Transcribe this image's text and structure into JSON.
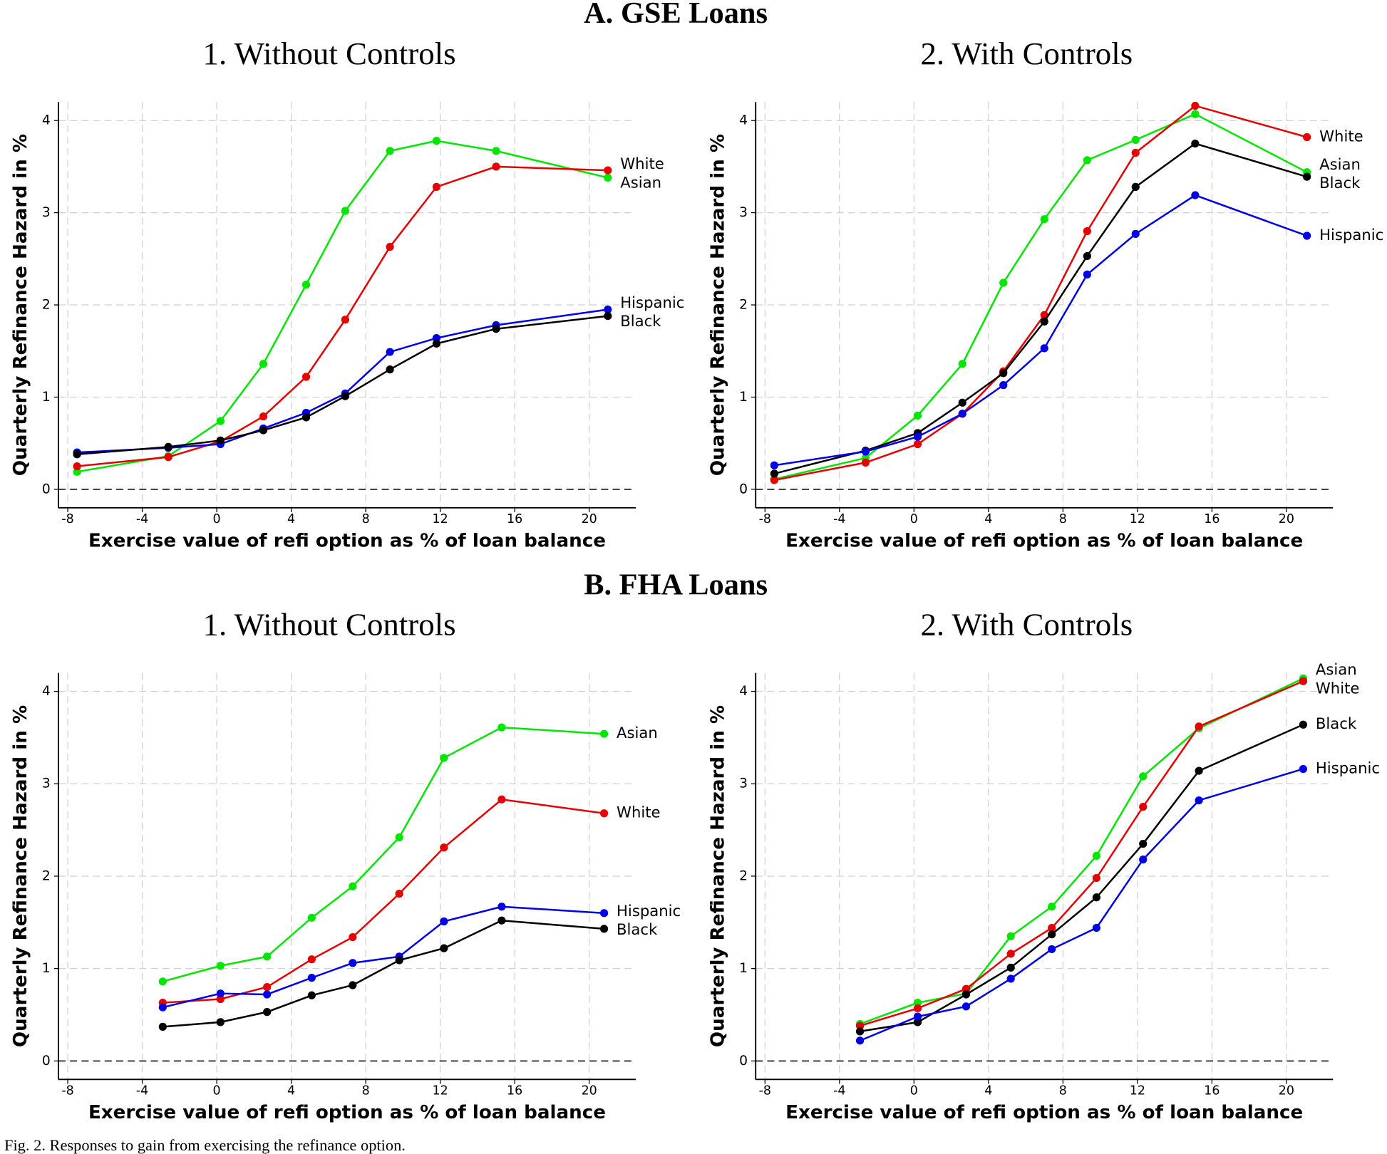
{
  "sections": [
    {
      "title": "A. GSE Loans"
    },
    {
      "title": "B. FHA Loans"
    }
  ],
  "caption": "Fig. 2. Responses to gain from exercising the refinance option.",
  "chart_data": [
    {
      "type": "line",
      "title": "1. Without Controls",
      "x_label": "Exercise value of refi option as % of loan balance",
      "y_label": "Quarterly Refinance Hazard in %",
      "x": [
        -7.5,
        -2.6,
        0.2,
        2.5,
        4.8,
        6.9,
        9.3,
        11.8,
        15,
        21
      ],
      "series": [
        {
          "name": "Asian",
          "color": "#00e600",
          "values": [
            0.19,
            0.36,
            0.74,
            1.36,
            2.22,
            3.02,
            3.67,
            3.78,
            3.67,
            3.38
          ]
        },
        {
          "name": "White",
          "color": "#e60000",
          "values": [
            0.25,
            0.35,
            0.52,
            0.79,
            1.22,
            1.84,
            2.63,
            3.28,
            3.5,
            3.46
          ]
        },
        {
          "name": "Hispanic",
          "color": "#0000e6",
          "values": [
            0.4,
            0.45,
            0.49,
            0.66,
            0.83,
            1.04,
            1.49,
            1.64,
            1.78,
            1.95
          ]
        },
        {
          "name": "Black",
          "color": "#000000",
          "values": [
            0.38,
            0.46,
            0.53,
            0.64,
            0.78,
            1.01,
            1.3,
            1.58,
            1.74,
            1.88
          ]
        }
      ],
      "xlim": [
        -8.5,
        22.5
      ],
      "xticks": [
        -8,
        -4,
        0,
        4,
        8,
        12,
        16,
        20
      ],
      "ylim": [
        -0.2,
        4.2
      ],
      "yticks": [
        0,
        1,
        2,
        3,
        4
      ],
      "grid": true,
      "hline": 0
    },
    {
      "type": "line",
      "title": "2. With Controls",
      "x_label": "Exercise value of refi option as % of loan balance",
      "y_label": "Quarterly Refinance Hazard in %",
      "x": [
        -7.5,
        -2.6,
        0.2,
        2.6,
        4.8,
        7,
        9.3,
        11.9,
        15.1,
        21.1
      ],
      "series": [
        {
          "name": "Asian",
          "color": "#00e600",
          "values": [
            0.11,
            0.34,
            0.8,
            1.36,
            2.24,
            2.93,
            3.57,
            3.79,
            4.07,
            3.44
          ]
        },
        {
          "name": "White",
          "color": "#e60000",
          "values": [
            0.1,
            0.29,
            0.49,
            0.82,
            1.28,
            1.89,
            2.8,
            3.65,
            4.16,
            3.82
          ]
        },
        {
          "name": "Black",
          "color": "#000000",
          "values": [
            0.17,
            0.42,
            0.61,
            0.94,
            1.26,
            1.82,
            2.53,
            3.28,
            3.75,
            3.39
          ]
        },
        {
          "name": "Hispanic",
          "color": "#0000e6",
          "values": [
            0.26,
            0.41,
            0.57,
            0.82,
            1.13,
            1.53,
            2.33,
            2.77,
            3.19,
            2.75
          ]
        }
      ],
      "xlim": [
        -8.5,
        22.5
      ],
      "xticks": [
        -8,
        -4,
        0,
        4,
        8,
        12,
        16,
        20
      ],
      "ylim": [
        -0.2,
        4.2
      ],
      "yticks": [
        0,
        1,
        2,
        3,
        4
      ],
      "grid": true,
      "hline": 0
    },
    {
      "type": "line",
      "title": "1. Without Controls",
      "x_label": "Exercise value of refi option as % of loan balance",
      "y_label": "Quarterly Refinance Hazard in %",
      "x": [
        -2.9,
        0.2,
        2.7,
        5.1,
        7.3,
        9.8,
        12.2,
        15.3,
        20.8
      ],
      "series": [
        {
          "name": "Asian",
          "color": "#00e600",
          "values": [
            0.86,
            1.03,
            1.13,
            1.55,
            1.89,
            2.42,
            3.28,
            3.61,
            3.54
          ]
        },
        {
          "name": "White",
          "color": "#e60000",
          "values": [
            0.63,
            0.67,
            0.8,
            1.1,
            1.34,
            1.81,
            2.31,
            2.83,
            2.68
          ]
        },
        {
          "name": "Hispanic",
          "color": "#0000e6",
          "values": [
            0.58,
            0.73,
            0.72,
            0.9,
            1.06,
            1.13,
            1.51,
            1.67,
            1.6
          ]
        },
        {
          "name": "Black",
          "color": "#000000",
          "values": [
            0.37,
            0.42,
            0.53,
            0.71,
            0.82,
            1.09,
            1.22,
            1.52,
            1.43
          ]
        }
      ],
      "xlim": [
        -8.5,
        22.5
      ],
      "xticks": [
        -8,
        -4,
        0,
        4,
        8,
        12,
        16,
        20
      ],
      "ylim": [
        -0.2,
        4.2
      ],
      "yticks": [
        0,
        1,
        2,
        3,
        4
      ],
      "grid": true,
      "hline": 0
    },
    {
      "type": "line",
      "title": "2. With Controls",
      "x_label": "Exercise value of refi option as % of loan balance",
      "y_label": "Quarterly Refinance Hazard in %",
      "x": [
        -2.9,
        0.2,
        2.8,
        5.2,
        7.4,
        9.8,
        12.3,
        15.3,
        20.9
      ],
      "series": [
        {
          "name": "Asian",
          "color": "#00e600",
          "values": [
            0.4,
            0.63,
            0.73,
            1.35,
            1.67,
            2.22,
            3.08,
            3.6,
            4.14
          ]
        },
        {
          "name": "White",
          "color": "#e60000",
          "values": [
            0.38,
            0.57,
            0.78,
            1.16,
            1.44,
            1.98,
            2.75,
            3.62,
            4.11
          ]
        },
        {
          "name": "Black",
          "color": "#000000",
          "values": [
            0.32,
            0.42,
            0.72,
            1.01,
            1.37,
            1.77,
            2.35,
            3.14,
            3.64
          ]
        },
        {
          "name": "Hispanic",
          "color": "#0000e6",
          "values": [
            0.22,
            0.48,
            0.59,
            0.89,
            1.21,
            1.44,
            2.18,
            2.82,
            3.16
          ]
        }
      ],
      "xlim": [
        -8.5,
        22.5
      ],
      "xticks": [
        -8,
        -4,
        0,
        4,
        8,
        12,
        16,
        20
      ],
      "ylim": [
        -0.2,
        4.2
      ],
      "yticks": [
        0,
        1,
        2,
        3,
        4
      ],
      "grid": true,
      "hline": 0
    }
  ]
}
